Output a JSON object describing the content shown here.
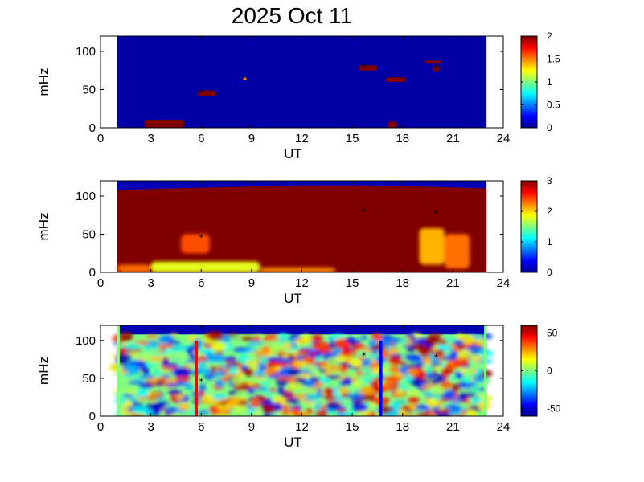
{
  "figure": {
    "title": "2025 Oct 11"
  },
  "chart_data": [
    {
      "type": "heatmap",
      "xlabel": "UT",
      "ylabel": "mHz",
      "xlim": [
        0,
        24
      ],
      "ylim": [
        0,
        120
      ],
      "xticks": [
        0,
        3,
        6,
        9,
        12,
        15,
        18,
        21,
        24
      ],
      "yticks": [
        0,
        50,
        100
      ],
      "data_x_range": [
        1,
        23
      ],
      "colorbar": {
        "range": [
          0,
          2
        ],
        "ticks": [
          "0",
          "0.5",
          "1",
          "1.5",
          "2"
        ],
        "tick_values": [
          0,
          0.5,
          1,
          1.5,
          2
        ]
      },
      "features": [
        {
          "x": [
            2.6,
            5.0
          ],
          "y": [
            0,
            10
          ],
          "value": 2
        },
        {
          "x": [
            5.8,
            6.9
          ],
          "y": [
            41,
            49
          ],
          "value": 2
        },
        {
          "x": [
            8.5,
            8.7
          ],
          "y": [
            62,
            66
          ],
          "value": 1.5
        },
        {
          "x": [
            15.4,
            16.5
          ],
          "y": [
            75,
            82
          ],
          "value": 2
        },
        {
          "x": [
            17.1,
            17.7
          ],
          "y": [
            0,
            8
          ],
          "value": 2
        },
        {
          "x": [
            17.0,
            18.2
          ],
          "y": [
            60,
            66
          ],
          "value": 2
        },
        {
          "x": [
            19.3,
            20.3
          ],
          "y": [
            84,
            88
          ],
          "value": 2
        },
        {
          "x": [
            19.8,
            20.2
          ],
          "y": [
            73,
            82
          ],
          "value": 2
        }
      ],
      "markers": [
        {
          "x": 6.0,
          "y": 46
        },
        {
          "x": 15.7,
          "y": 80
        },
        {
          "x": 20.0,
          "y": 78
        }
      ]
    },
    {
      "type": "heatmap",
      "xlabel": "UT",
      "ylabel": "mHz",
      "xlim": [
        0,
        24
      ],
      "ylim": [
        0,
        120
      ],
      "xticks": [
        0,
        3,
        6,
        9,
        12,
        15,
        18,
        21,
        24
      ],
      "yticks": [
        0,
        50,
        100
      ],
      "data_x_range": [
        1,
        23
      ],
      "colorbar": {
        "range": [
          0,
          3
        ],
        "ticks": [
          "0",
          "1",
          "2",
          "3"
        ],
        "tick_values": [
          0,
          1,
          2,
          3
        ]
      },
      "saturated_top_mHz": [
        [
          1,
          108
        ],
        [
          4,
          110
        ],
        [
          8,
          112
        ],
        [
          12,
          114
        ],
        [
          16,
          114
        ],
        [
          20,
          112
        ],
        [
          23,
          110
        ]
      ],
      "low_frequency_values": [
        {
          "x": [
            1.0,
            3.0
          ],
          "y": [
            0,
            10
          ],
          "value": 2.3
        },
        {
          "x": [
            3.0,
            9.5
          ],
          "y": [
            0,
            14
          ],
          "value": 1.8
        },
        {
          "x": [
            9.5,
            14.0
          ],
          "y": [
            0,
            6
          ],
          "value": 2.2
        },
        {
          "x": [
            4.8,
            6.5
          ],
          "y": [
            25,
            50
          ],
          "value": 2.4
        },
        {
          "x": [
            19.0,
            20.5
          ],
          "y": [
            10,
            58
          ],
          "value": 2.1
        },
        {
          "x": [
            20.5,
            22.0
          ],
          "y": [
            5,
            50
          ],
          "value": 2.3
        }
      ],
      "markers": [
        {
          "x": 6.0,
          "y": 46
        },
        {
          "x": 15.7,
          "y": 80
        },
        {
          "x": 20.0,
          "y": 78
        }
      ]
    },
    {
      "type": "heatmap",
      "xlabel": "UT",
      "ylabel": "mHz",
      "xlim": [
        0,
        24
      ],
      "ylim": [
        0,
        120
      ],
      "xticks": [
        0,
        3,
        6,
        9,
        12,
        15,
        18,
        21,
        24
      ],
      "yticks": [
        0,
        50,
        100
      ],
      "data_x_range": [
        1,
        23
      ],
      "colorbar": {
        "range": [
          -60,
          60
        ],
        "ticks": [
          "50",
          "0",
          "-50"
        ],
        "tick_values": [
          50,
          0,
          -50
        ]
      },
      "vertical_lines": [
        {
          "x": 5.7,
          "y": [
            0,
            100
          ],
          "color": "#ff0000"
        },
        {
          "x": 16.7,
          "y": [
            0,
            100
          ],
          "color": "#0000ff"
        }
      ],
      "markers": [
        {
          "x": 6.0,
          "y": 46
        },
        {
          "x": 15.7,
          "y": 80
        },
        {
          "x": 20.0,
          "y": 78
        }
      ]
    }
  ]
}
